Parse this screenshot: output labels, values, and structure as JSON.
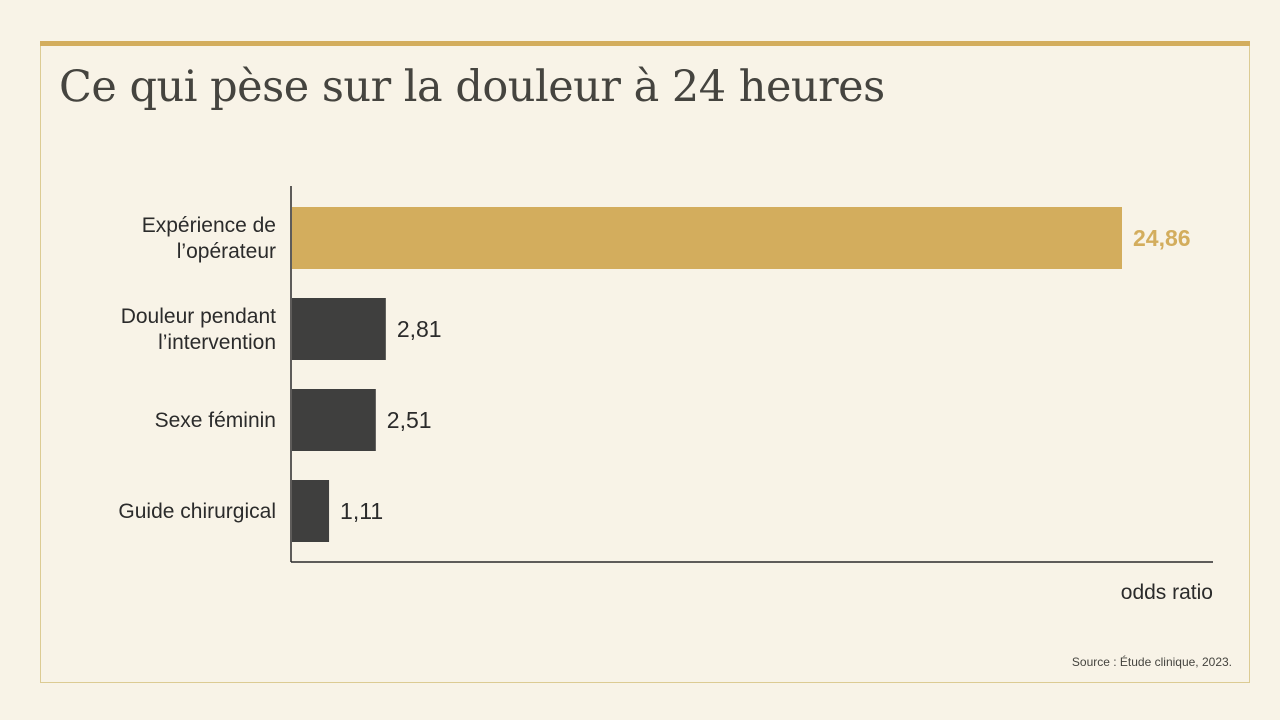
{
  "title": "Ce qui pèse sur la douleur à 24 heures",
  "source": "Source : Étude clinique, 2023.",
  "colors": {
    "highlight": "#d3ad5d",
    "bar": "#3f3f3e",
    "text": "#2b2b2b",
    "frame": "#dccb93",
    "background": "#f8f3e7"
  },
  "chart_data": {
    "type": "bar",
    "orientation": "horizontal",
    "categories": [
      [
        "Expérience de",
        "l’opérateur"
      ],
      [
        "Douleur pendant",
        "l’intervention"
      ],
      [
        "Sexe féminin"
      ],
      [
        "Guide chirurgical"
      ]
    ],
    "values": [
      24.86,
      2.81,
      2.51,
      1.11
    ],
    "value_labels": [
      "24,86",
      "2,81",
      "2,51",
      "1,11"
    ],
    "highlight_index": 0,
    "xlabel": "odds ratio",
    "xlim": [
      0,
      28
    ],
    "grid": false
  }
}
